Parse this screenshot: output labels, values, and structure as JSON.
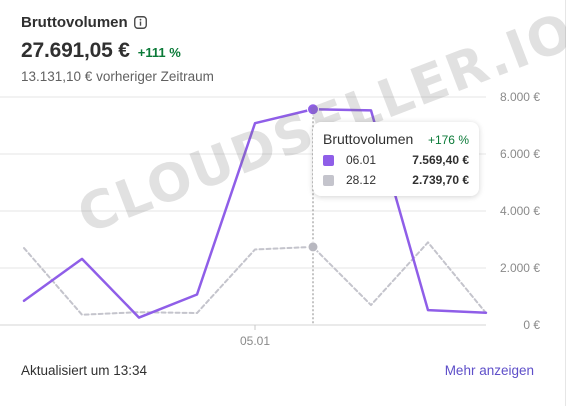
{
  "header": {
    "title": "Bruttovolumen",
    "value": "27.691,05 €",
    "delta": "+111 %",
    "previous": "13.131,10 € vorheriger Zeitraum"
  },
  "tooltip": {
    "title": "Bruttovolumen",
    "delta": "+176 %",
    "rows": [
      {
        "label": "06.01",
        "value": "7.569,40 €",
        "color": "#8f5ee8"
      },
      {
        "label": "28.12",
        "value": "2.739,70 €",
        "color": "#c4c4cc"
      }
    ]
  },
  "watermark": "CLOUDSELLER.IO",
  "footer": {
    "updated": "Aktualisiert um 13:34",
    "more_link": "Mehr anzeigen"
  },
  "chart_data": {
    "type": "line",
    "title": "Bruttovolumen",
    "x_tick_labels": [
      "05.01"
    ],
    "ylim": [
      0,
      8000
    ],
    "y_ticks": [
      {
        "value": 8000,
        "label": "8.000 €"
      },
      {
        "value": 6000,
        "label": "6.000 €"
      },
      {
        "value": 4000,
        "label": "4.000 €"
      },
      {
        "value": 2000,
        "label": "2.000 €"
      },
      {
        "value": 0,
        "label": "0 €"
      }
    ],
    "grid": true,
    "series": [
      {
        "label": "06.01",
        "color": "#8f5ee8",
        "style": "solid",
        "values": [
          850,
          2320,
          260,
          1070,
          7080,
          7569.4,
          7530,
          520,
          430
        ]
      },
      {
        "label": "28.12",
        "color": "#c4c4cc",
        "style": "dashed",
        "values": [
          2700,
          360,
          450,
          420,
          2650,
          2739.7,
          700,
          2900,
          420
        ]
      }
    ],
    "highlight_index": 5,
    "x_tick_index": 4
  }
}
